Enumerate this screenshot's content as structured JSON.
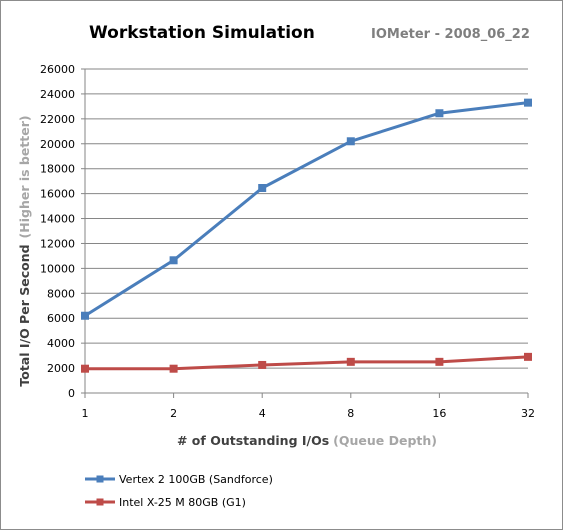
{
  "chart_data": {
    "type": "line",
    "title": "Workstation Simulation",
    "subtitle": "IOMeter - 2008_06_22",
    "xlabel": "# of Outstanding I/Os",
    "xlabel_note": "(Queue Depth)",
    "ylabel": "Total I/O Per Second",
    "ylabel_note": "(Higher is better)",
    "categories": [
      "1",
      "2",
      "4",
      "8",
      "16",
      "32"
    ],
    "ylim": [
      0,
      26000
    ],
    "yticks": [
      "0",
      "2000",
      "4000",
      "6000",
      "8000",
      "10000",
      "12000",
      "14000",
      "16000",
      "18000",
      "20000",
      "22000",
      "24000",
      "26000"
    ],
    "grid": true,
    "legend_position": "bottom-left",
    "series": [
      {
        "name": "Vertex 2 100GB (Sandforce)",
        "color": "#4a7ebb",
        "values": [
          6200,
          10650,
          16450,
          20200,
          22450,
          23300
        ]
      },
      {
        "name": "Intel X-25 M 80GB (G1)",
        "color": "#be4b48",
        "values": [
          1950,
          1950,
          2250,
          2500,
          2500,
          2900
        ]
      }
    ]
  }
}
